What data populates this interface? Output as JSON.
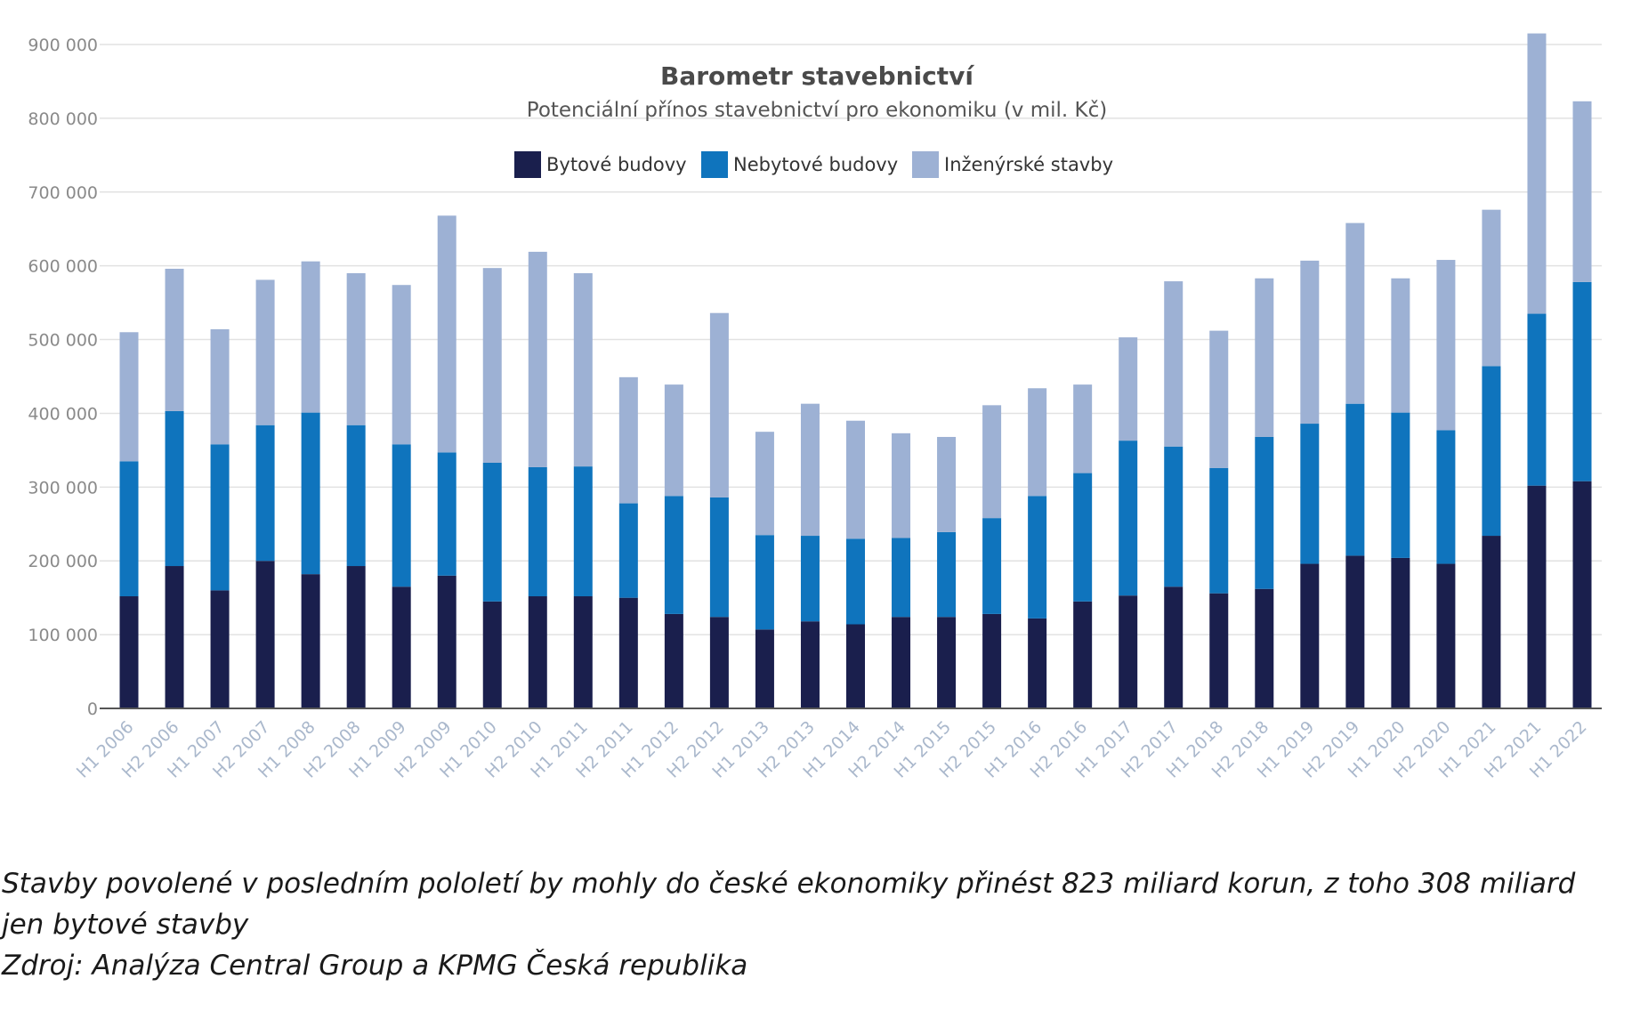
{
  "chart_data": {
    "type": "bar",
    "stacked": true,
    "title": "Barometr stavebnictví",
    "subtitle": "Potenciální přínos stavebnictví pro ekonomiku (v mil. Kč)",
    "ylim": [
      0,
      900000
    ],
    "yticks": [
      "0",
      "100 000",
      "200 000",
      "300 000",
      "400 000",
      "500 000",
      "600 000",
      "700 000",
      "800 000",
      "900 000"
    ],
    "grid": true,
    "legend_position": "top-center",
    "categories": [
      "H1 2006",
      "H2 2006",
      "H1 2007",
      "H2 2007",
      "H1 2008",
      "H2 2008",
      "H1 2009",
      "H2 2009",
      "H1 2010",
      "H2 2010",
      "H1 2011",
      "H2 2011",
      "H1 2012",
      "H2 2012",
      "H1 2013",
      "H2 2013",
      "H1 2014",
      "H2 2014",
      "H1 2015",
      "H2 2015",
      "H1 2016",
      "H2 2016",
      "H1 2017",
      "H2 2017",
      "H1 2018",
      "H2 2018",
      "H1 2019",
      "H2 2019",
      "H1 2020",
      "H2 2020",
      "H1 2021",
      "H2 2021",
      "H1 2022"
    ],
    "series": [
      {
        "name": "Bytové budovy",
        "color": "#1a1f4d",
        "values": [
          152000,
          193000,
          160000,
          200000,
          182000,
          193000,
          165000,
          180000,
          145000,
          152000,
          152000,
          150000,
          128000,
          124000,
          107000,
          118000,
          114000,
          124000,
          124000,
          128000,
          122000,
          145000,
          153000,
          165000,
          156000,
          162000,
          196000,
          207000,
          204000,
          196000,
          234000,
          302000,
          308000
        ]
      },
      {
        "name": "Nebytové budovy",
        "color": "#0f74bd",
        "values": [
          183000,
          210000,
          198000,
          184000,
          219000,
          191000,
          193000,
          167000,
          188000,
          175000,
          176000,
          128000,
          160000,
          162000,
          128000,
          116000,
          116000,
          107000,
          115000,
          130000,
          166000,
          174000,
          210000,
          190000,
          170000,
          206000,
          190000,
          206000,
          197000,
          181000,
          230000,
          233000,
          270000
        ]
      },
      {
        "name": "Inženýrské stavby",
        "color": "#9db1d4",
        "values": [
          175000,
          193000,
          156000,
          197000,
          205000,
          206000,
          216000,
          321000,
          264000,
          292000,
          262000,
          171000,
          151000,
          250000,
          140000,
          179000,
          160000,
          142000,
          129000,
          153000,
          146000,
          120000,
          140000,
          224000,
          186000,
          215000,
          221000,
          245000,
          182000,
          231000,
          212000,
          380000,
          245000
        ]
      }
    ]
  },
  "caption": {
    "line1": "Stavby povolené v posledním pololetí by mohly do české ekonomiky přinést 823 miliard korun, z toho 308 miliard jen bytové stavby",
    "line2": "Zdroj: Analýza Central Group a KPMG Česká republika"
  }
}
